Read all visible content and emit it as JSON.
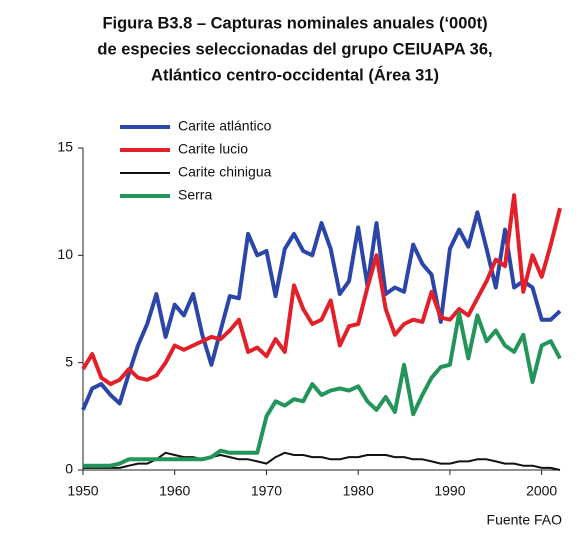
{
  "chart_data": {
    "type": "line",
    "title": [
      "Figura B3.8  –  Capturas nominales anuales (‘000t)",
      "de especies seleccionadas del grupo CEIUAPA 36,",
      "Atlántico centro-occidental (Área 31)"
    ],
    "source": "Fuente FAO",
    "x": [
      1950,
      1951,
      1952,
      1953,
      1954,
      1955,
      1956,
      1957,
      1958,
      1959,
      1960,
      1961,
      1962,
      1963,
      1964,
      1965,
      1966,
      1967,
      1968,
      1969,
      1970,
      1971,
      1972,
      1973,
      1974,
      1975,
      1976,
      1977,
      1978,
      1979,
      1980,
      1981,
      1982,
      1983,
      1984,
      1985,
      1986,
      1987,
      1988,
      1989,
      1990,
      1991,
      1992,
      1993,
      1994,
      1995,
      1996,
      1997,
      1998,
      1999,
      2000,
      2001,
      2002
    ],
    "series": [
      {
        "name": "Carite atlántico",
        "color": "#2b46a8",
        "values": [
          2.8,
          3.8,
          4.0,
          3.5,
          3.1,
          4.5,
          5.8,
          6.8,
          8.2,
          6.2,
          7.7,
          7.2,
          8.2,
          6.3,
          4.9,
          6.5,
          8.1,
          8.0,
          11.0,
          10.0,
          10.2,
          8.1,
          10.3,
          11.0,
          10.2,
          10.0,
          11.5,
          10.3,
          8.2,
          8.8,
          11.3,
          8.6,
          11.5,
          8.2,
          8.5,
          8.3,
          10.5,
          9.6,
          9.1,
          6.9,
          10.3,
          11.2,
          10.4,
          12.0,
          10.3,
          8.5,
          11.2,
          8.5,
          8.8,
          8.5,
          7.0,
          7.0,
          7.4
        ]
      },
      {
        "name": "Carite lucio",
        "color": "#e3202a",
        "values": [
          4.7,
          5.4,
          4.3,
          4.0,
          4.2,
          4.7,
          4.3,
          4.2,
          4.4,
          5.0,
          5.8,
          5.6,
          5.8,
          6.0,
          6.2,
          6.1,
          6.5,
          7.0,
          5.5,
          5.7,
          5.3,
          6.1,
          5.5,
          8.6,
          7.5,
          6.8,
          7.0,
          7.9,
          5.8,
          6.7,
          6.8,
          8.5,
          10.0,
          7.5,
          6.3,
          6.8,
          7.0,
          6.9,
          8.3,
          7.1,
          7.0,
          7.5,
          7.2,
          8.0,
          8.8,
          9.8,
          9.5,
          12.8,
          8.3,
          10.0,
          9.0,
          10.5,
          12.2
        ]
      },
      {
        "name": "Carite chinigua",
        "color": "#111111",
        "values": [
          0.1,
          0.1,
          0.1,
          0.1,
          0.1,
          0.2,
          0.3,
          0.3,
          0.5,
          0.8,
          0.7,
          0.6,
          0.6,
          0.5,
          0.6,
          0.7,
          0.6,
          0.5,
          0.5,
          0.4,
          0.3,
          0.6,
          0.8,
          0.7,
          0.7,
          0.6,
          0.6,
          0.5,
          0.5,
          0.6,
          0.6,
          0.7,
          0.7,
          0.7,
          0.6,
          0.6,
          0.5,
          0.5,
          0.4,
          0.3,
          0.3,
          0.4,
          0.4,
          0.5,
          0.5,
          0.4,
          0.3,
          0.3,
          0.2,
          0.2,
          0.1,
          0.1,
          0.0
        ]
      },
      {
        "name": "Serra",
        "color": "#23955a",
        "values": [
          0.2,
          0.2,
          0.2,
          0.2,
          0.3,
          0.5,
          0.5,
          0.5,
          0.5,
          0.5,
          0.5,
          0.5,
          0.5,
          0.5,
          0.6,
          0.9,
          0.8,
          0.8,
          0.8,
          0.8,
          2.5,
          3.2,
          3.0,
          3.3,
          3.2,
          4.0,
          3.5,
          3.7,
          3.8,
          3.7,
          3.9,
          3.2,
          2.8,
          3.4,
          2.7,
          4.9,
          2.6,
          3.5,
          4.3,
          4.8,
          4.9,
          7.3,
          5.2,
          7.2,
          6.0,
          6.5,
          5.8,
          5.5,
          6.3,
          4.1,
          5.8,
          6.0,
          5.2
        ]
      }
    ],
    "xlim": [
      1950,
      2002
    ],
    "xticks": [
      1950,
      1960,
      1970,
      1980,
      1990,
      2000
    ],
    "ylim": [
      0,
      15
    ],
    "yticks": [
      0,
      5,
      10,
      15
    ]
  }
}
